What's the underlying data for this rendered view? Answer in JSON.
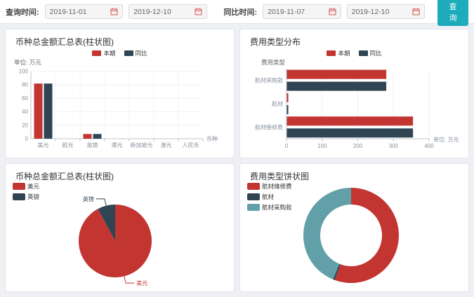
{
  "toolbar": {
    "query_time_label": "查询时间:",
    "compare_time_label": "同比时间:",
    "query_start": "2019-11-01",
    "query_end": "2019-12-10",
    "compare_start": "2019-11-07",
    "compare_end": "2019-12-10",
    "search_button": "查询"
  },
  "colors": {
    "current_period": "#c23531",
    "compare_period": "#2f4554",
    "purchase_teal": "#61a0a8",
    "button_teal": "#1cacbc",
    "calendar_icon": "#d9534f"
  },
  "chart_data": [
    {
      "type": "bar",
      "title": "币种总金额汇总表(柱状图)",
      "unit_label": "单位: 万元",
      "axis_name": "币种",
      "categories": [
        "美元",
        "欧元",
        "英镑",
        "港元",
        "新加坡元",
        "澳元",
        "人民币"
      ],
      "series": [
        {
          "name": "本期",
          "color": "#c23531",
          "values": [
            82,
            0,
            7,
            0,
            0,
            0,
            0
          ]
        },
        {
          "name": "同比",
          "color": "#2f4554",
          "values": [
            82,
            0,
            7,
            0,
            0,
            0,
            0
          ]
        }
      ],
      "ylim": [
        0,
        100
      ],
      "yticks": [
        0,
        20,
        40,
        60,
        80,
        100
      ],
      "legend_position": "top-center",
      "grid": true
    },
    {
      "type": "bar-horizontal",
      "title": "费用类型分布",
      "axis_name_y": "费用类型",
      "unit_label": "单位: 万元",
      "categories": [
        "航材采购款",
        "航材",
        "航材维修费"
      ],
      "series": [
        {
          "name": "本期",
          "color": "#c23531",
          "values": [
            279,
            4,
            354
          ]
        },
        {
          "name": "同比",
          "color": "#2f4554",
          "values": [
            279,
            4,
            354
          ]
        }
      ],
      "xlim": [
        0,
        400
      ],
      "xticks": [
        0,
        100,
        200,
        300,
        400
      ],
      "legend_position": "top-center",
      "grid": true
    },
    {
      "type": "pie",
      "title": "币种总金额汇总表(柱状图)",
      "legend_position": "top-left",
      "slices": [
        {
          "name": "美元",
          "value": 82,
          "pct": 92.1,
          "color": "#c23531"
        },
        {
          "name": "英镑",
          "value": 7,
          "pct": 7.9,
          "color": "#2f4554"
        }
      ]
    },
    {
      "type": "donut",
      "title": "费用类型饼状图",
      "legend_position": "top-left",
      "slices": [
        {
          "name": "航材维修费",
          "value": 354,
          "pct": 55.6,
          "color": "#c23531"
        },
        {
          "name": "航材",
          "value": 4,
          "pct": 0.6,
          "color": "#2f4554"
        },
        {
          "name": "航材采购款",
          "value": 279,
          "pct": 43.8,
          "color": "#61a0a8"
        }
      ]
    }
  ]
}
